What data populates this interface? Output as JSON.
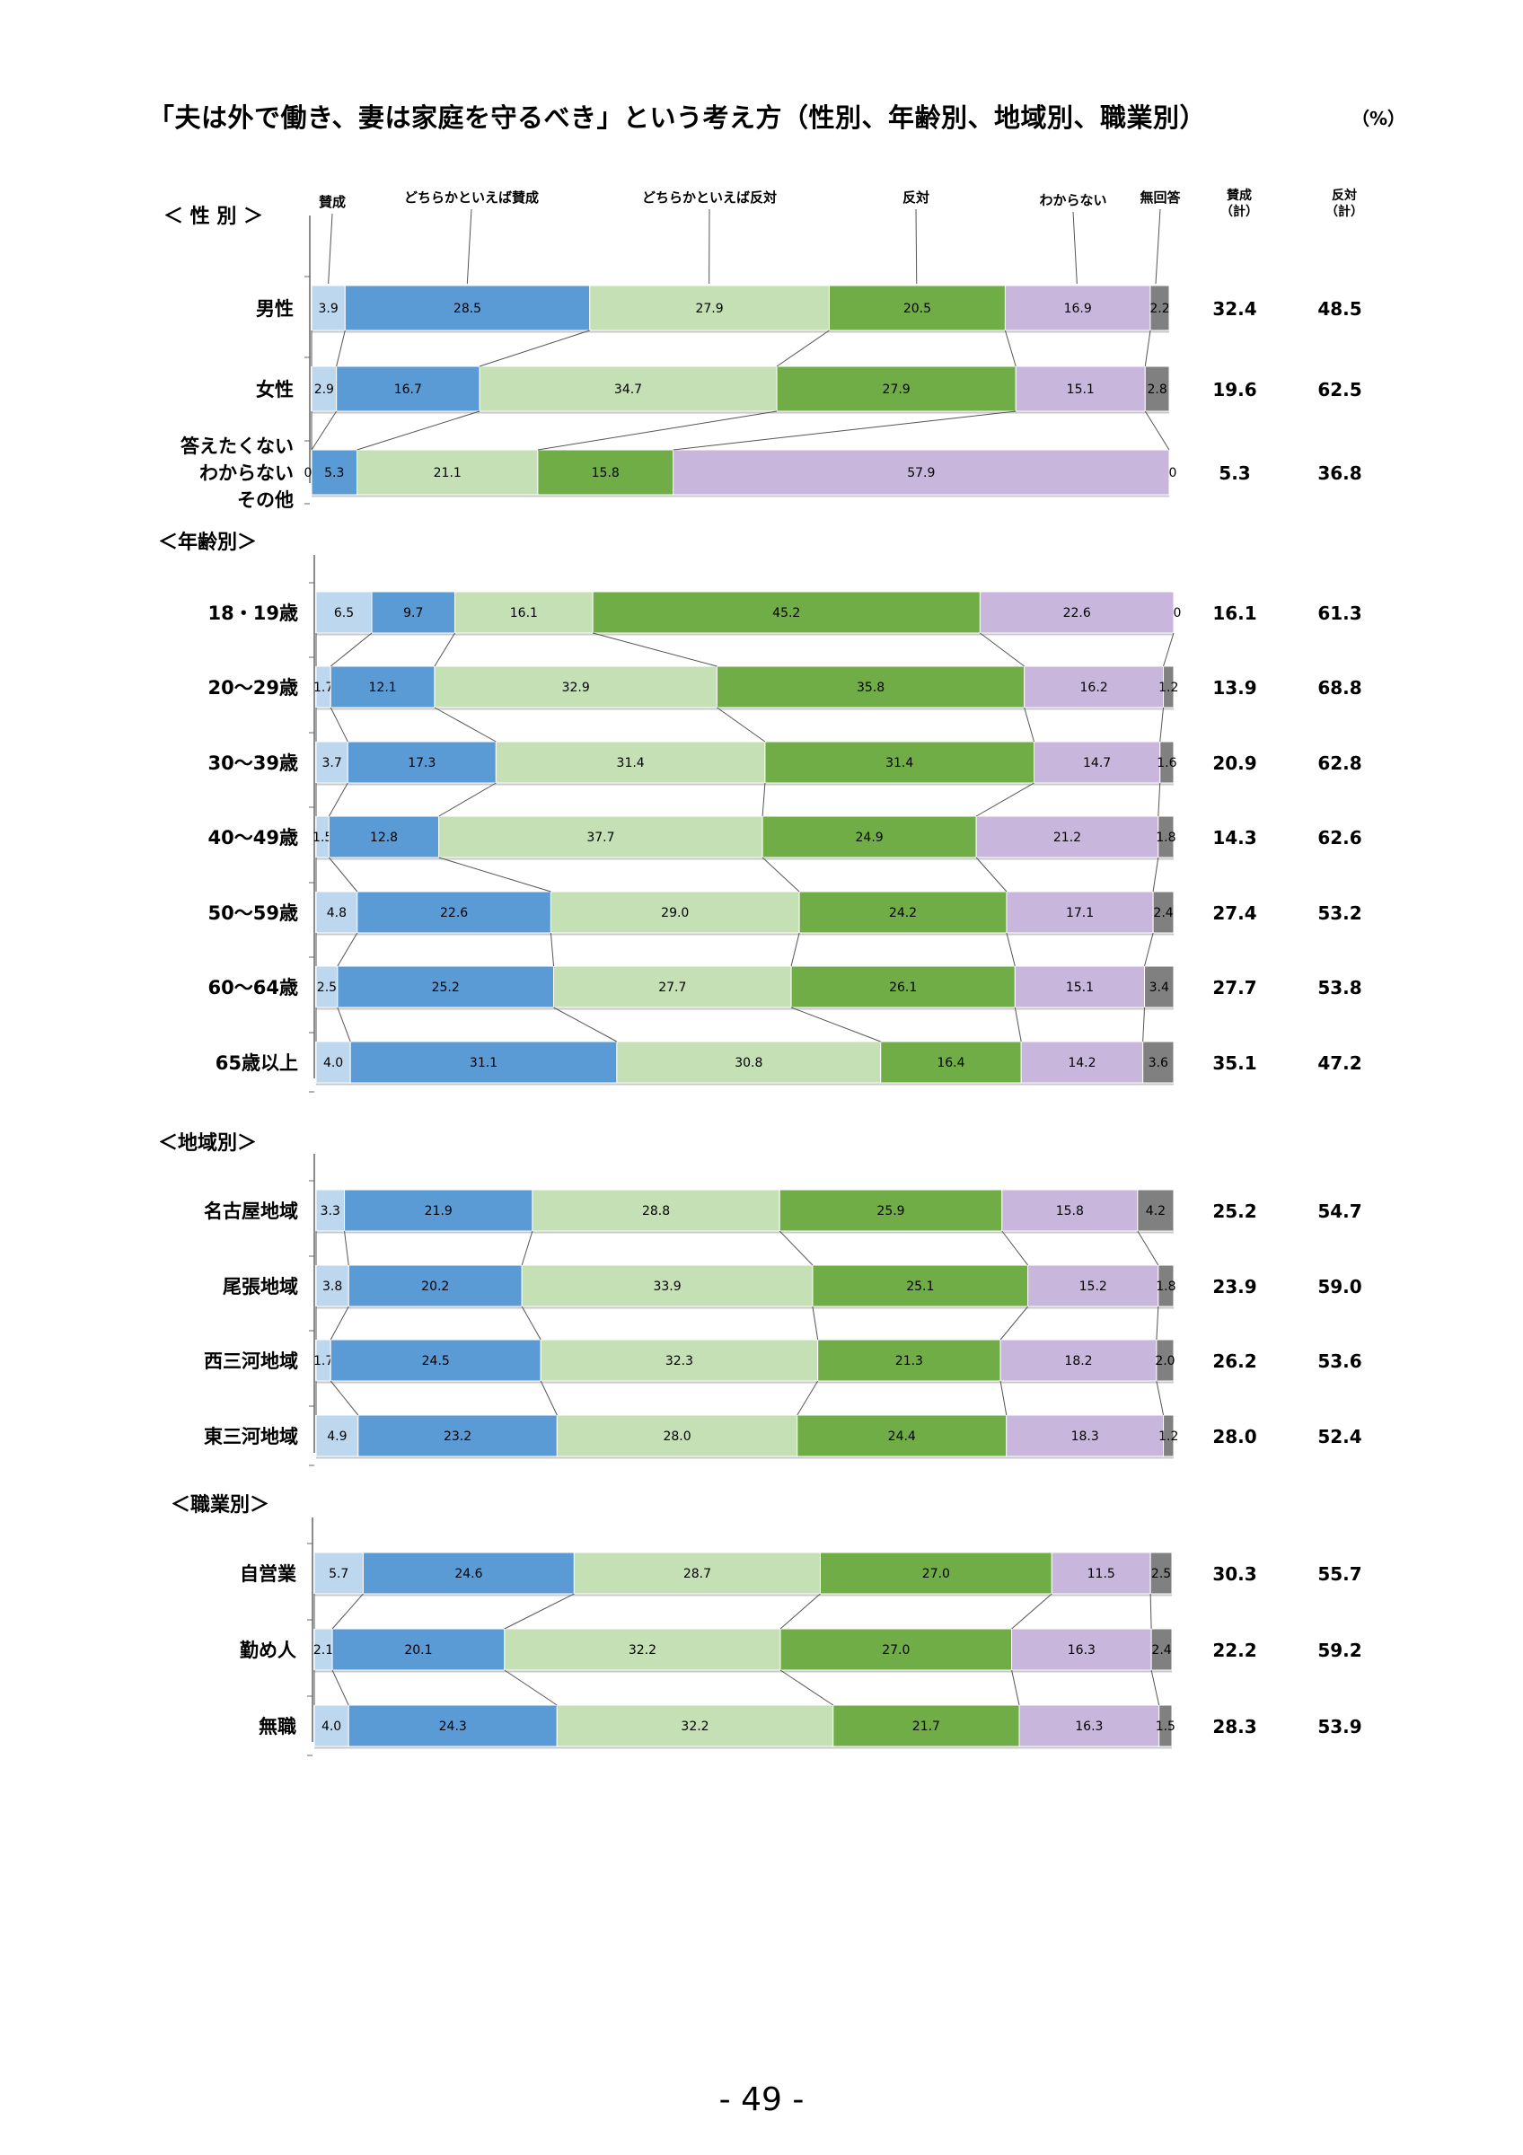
{
  "title": "「夫は外で働き、妻は家庭を守るべき」という考え方（性別、年齢別、地域別、職業別）",
  "unit": "（%）",
  "page_number": "- 49 -",
  "legend": {
    "categories": [
      "賛成",
      "どちらかといえば賛成",
      "どちらかといえば反対",
      "反対",
      "わからない",
      "無回答"
    ],
    "summary_headers": [
      "賛成\n（計）",
      "反対\n（計）"
    ]
  },
  "colors": [
    "#bdd7ee",
    "#5b9bd5",
    "#c5e0b4",
    "#70ad47",
    "#c9b6dc",
    "#808080"
  ],
  "chart_data": {
    "type": "bar",
    "orientation": "horizontal-stacked-100",
    "series": [
      {
        "name": "賛成",
        "color": "#bdd7ee"
      },
      {
        "name": "どちらかといえば賛成",
        "color": "#5b9bd5"
      },
      {
        "name": "どちらかといえば反対",
        "color": "#c5e0b4"
      },
      {
        "name": "反対",
        "color": "#70ad47"
      },
      {
        "name": "わからない",
        "color": "#c9b6dc"
      },
      {
        "name": "無回答",
        "color": "#808080"
      }
    ],
    "groups": [
      {
        "heading": "＜ 性 別 ＞",
        "rows": [
          {
            "label": "男性",
            "values": [
              "3.9",
              "28.5",
              "27.9",
              "20.5",
              "16.9",
              "2.2"
            ],
            "agree_total": "32.4",
            "oppose_total": "48.5"
          },
          {
            "label": "女性",
            "values": [
              "2.9",
              "16.7",
              "34.7",
              "27.9",
              "15.1",
              "2.8"
            ],
            "agree_total": "19.6",
            "oppose_total": "62.5"
          },
          {
            "label": "答えたくない\nわからない\nその他",
            "values": [
              "0",
              "5.3",
              "21.1",
              "15.8",
              "57.9",
              "0"
            ],
            "agree_total": "5.3",
            "oppose_total": "36.8"
          }
        ]
      },
      {
        "heading": "＜年齢別＞",
        "rows": [
          {
            "label": "18・19歳",
            "values": [
              "6.5",
              "9.7",
              "16.1",
              "45.2",
              "22.6",
              "0"
            ],
            "agree_total": "16.1",
            "oppose_total": "61.3"
          },
          {
            "label": "20～29歳",
            "values": [
              "1.7",
              "12.1",
              "32.9",
              "35.8",
              "16.2",
              "1.2"
            ],
            "agree_total": "13.9",
            "oppose_total": "68.8"
          },
          {
            "label": "30～39歳",
            "values": [
              "3.7",
              "17.3",
              "31.4",
              "31.4",
              "14.7",
              "1.6"
            ],
            "agree_total": "20.9",
            "oppose_total": "62.8"
          },
          {
            "label": "40～49歳",
            "values": [
              "1.5",
              "12.8",
              "37.7",
              "24.9",
              "21.2",
              "1.8"
            ],
            "agree_total": "14.3",
            "oppose_total": "62.6"
          },
          {
            "label": "50～59歳",
            "values": [
              "4.8",
              "22.6",
              "29.0",
              "24.2",
              "17.1",
              "2.4"
            ],
            "agree_total": "27.4",
            "oppose_total": "53.2"
          },
          {
            "label": "60～64歳",
            "values": [
              "2.5",
              "25.2",
              "27.7",
              "26.1",
              "15.1",
              "3.4"
            ],
            "agree_total": "27.7",
            "oppose_total": "53.8"
          },
          {
            "label": "65歳以上",
            "values": [
              "4.0",
              "31.1",
              "30.8",
              "16.4",
              "14.2",
              "3.6"
            ],
            "agree_total": "35.1",
            "oppose_total": "47.2"
          }
        ]
      },
      {
        "heading": "＜地域別＞",
        "rows": [
          {
            "label": "名古屋地域",
            "values": [
              "3.3",
              "21.9",
              "28.8",
              "25.9",
              "15.8",
              "4.2"
            ],
            "agree_total": "25.2",
            "oppose_total": "54.7"
          },
          {
            "label": "尾張地域",
            "values": [
              "3.8",
              "20.2",
              "33.9",
              "25.1",
              "15.2",
              "1.8"
            ],
            "agree_total": "23.9",
            "oppose_total": "59.0"
          },
          {
            "label": "西三河地域",
            "values": [
              "1.7",
              "24.5",
              "32.3",
              "21.3",
              "18.2",
              "2.0"
            ],
            "agree_total": "26.2",
            "oppose_total": "53.6"
          },
          {
            "label": "東三河地域",
            "values": [
              "4.9",
              "23.2",
              "28.0",
              "24.4",
              "18.3",
              "1.2"
            ],
            "agree_total": "28.0",
            "oppose_total": "52.4"
          }
        ]
      },
      {
        "heading": "＜職業別＞",
        "rows": [
          {
            "label": "自営業",
            "values": [
              "5.7",
              "24.6",
              "28.7",
              "27.0",
              "11.5",
              "2.5"
            ],
            "agree_total": "30.3",
            "oppose_total": "55.7"
          },
          {
            "label": "勤め人",
            "values": [
              "2.1",
              "20.1",
              "32.2",
              "27.0",
              "16.3",
              "2.4"
            ],
            "agree_total": "22.2",
            "oppose_total": "59.2"
          },
          {
            "label": "無職",
            "values": [
              "4.0",
              "24.3",
              "32.2",
              "21.7",
              "16.3",
              "1.5"
            ],
            "agree_total": "28.3",
            "oppose_total": "53.9"
          }
        ]
      }
    ]
  }
}
